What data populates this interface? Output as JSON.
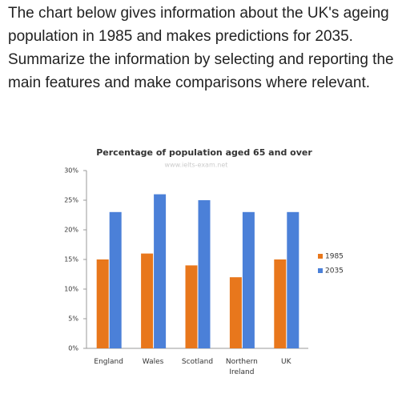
{
  "question": "The chart below gives information about the UK's ageing population in 1985 and makes predictions for 2035. Summarize the information by selecting and reporting the main features and make comparisons where relevant.",
  "chart_data": {
    "type": "bar",
    "title": "Percentage of population aged 65 and over",
    "watermark": "www.ielts-exam.net",
    "categories": [
      "England",
      "Wales",
      "Scotland",
      "Northern Ireland",
      "UK"
    ],
    "series": [
      {
        "name": "1985",
        "color": "#e8771c",
        "values": [
          15,
          16,
          14,
          12,
          15
        ]
      },
      {
        "name": "2035",
        "color": "#4b80d8",
        "values": [
          23,
          26,
          25,
          23,
          23
        ]
      }
    ],
    "ylim": [
      0,
      30
    ],
    "yticks": [
      {
        "value": 0,
        "label": "0%"
      },
      {
        "value": 5,
        "label": "5%"
      },
      {
        "value": 10,
        "label": "10%"
      },
      {
        "value": 15,
        "label": "15%"
      },
      {
        "value": 20,
        "label": "20%"
      },
      {
        "value": 25,
        "label": "25%"
      },
      {
        "value": 30,
        "label": "30%"
      }
    ],
    "legend": "right"
  }
}
